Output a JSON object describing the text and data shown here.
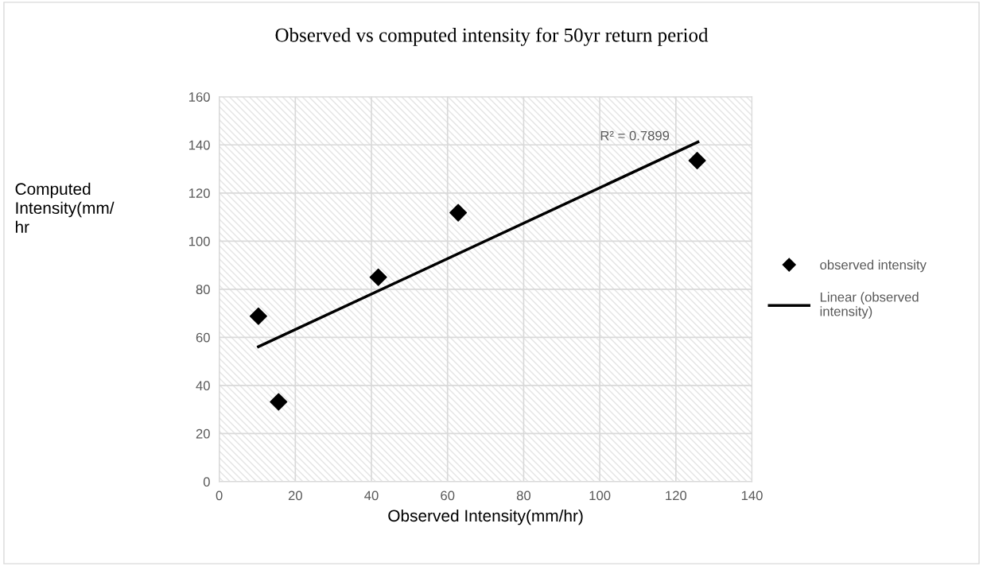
{
  "chart_data": {
    "type": "scatter",
    "title": "Observed vs computed intensity for 50yr return period",
    "xlabel": "Observed Intensity(mm/hr)",
    "ylabel": "Computed\nIntensity(mm/\nhr",
    "series": [
      {
        "name": "observed intensity",
        "color": "#000000",
        "marker": "diamond",
        "x": [
          10.3,
          15.6,
          41.8,
          62.8,
          125.6
        ],
        "values": [
          68.8,
          33.2,
          85.0,
          111.8,
          133.5
        ]
      },
      {
        "name": "Linear (observed\nintensity)",
        "type": "line",
        "color": "#000000",
        "marker": "none",
        "line_style": "solid",
        "x": [
          10.3,
          125.8
        ],
        "values": [
          56.1,
          141.2
        ]
      }
    ],
    "annotations": [
      "R² = 0.7899"
    ],
    "xlim": [
      0,
      140
    ],
    "xticks": [
      0,
      20,
      40,
      60,
      80,
      100,
      120,
      140
    ],
    "ylim": [
      0,
      160
    ],
    "yticks": [
      0,
      20,
      40,
      60,
      80,
      100,
      120,
      140,
      160
    ],
    "grid": true,
    "legend": "right"
  }
}
